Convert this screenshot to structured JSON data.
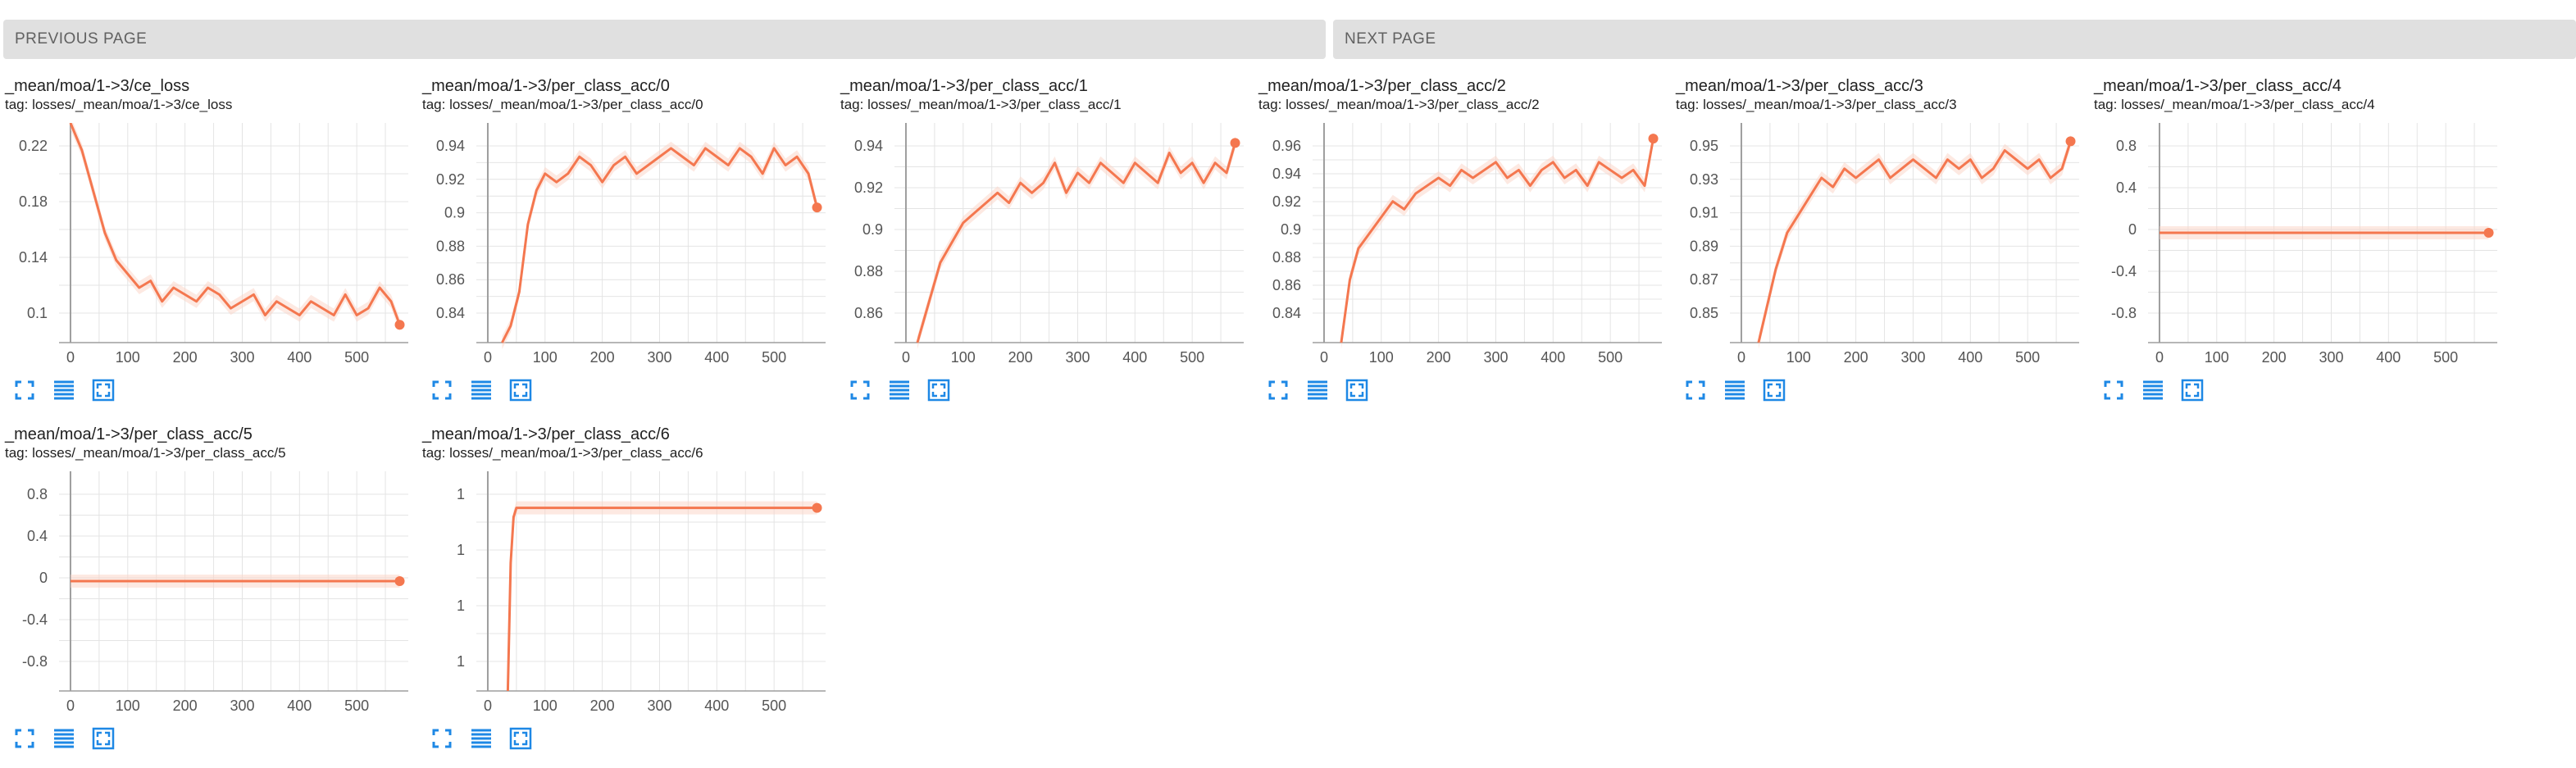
{
  "pager": {
    "previous_label": "PREVIOUS PAGE",
    "next_label": "NEXT PAGE"
  },
  "card_buttons": [
    "expand-icon",
    "data-table-icon",
    "fit-domain-icon"
  ],
  "colors": {
    "line": "#f4774f",
    "smooth_band": "#fbd3c6",
    "axis": "#9e9e9e",
    "grid": "#e4e4e4",
    "button": "#1e88e5"
  },
  "cards": [
    {
      "title": "_mean/moa/1->3/ce_loss",
      "tag": "tag: losses/_mean/moa/1->3/ce_loss",
      "x_ticks": [
        "0",
        "100",
        "200",
        "300",
        "400",
        "500"
      ],
      "y_ticks": [
        "0.22",
        "0.18",
        "0.14",
        "0.1"
      ]
    },
    {
      "title": "_mean/moa/1->3/per_class_acc/0",
      "tag": "tag: losses/_mean/moa/1->3/per_class_acc/0",
      "x_ticks": [
        "0",
        "100",
        "200",
        "300",
        "400",
        "500"
      ],
      "y_ticks": [
        "0.94",
        "0.92",
        "0.9",
        "0.88",
        "0.86",
        "0.84"
      ]
    },
    {
      "title": "_mean/moa/1->3/per_class_acc/1",
      "tag": "tag: losses/_mean/moa/1->3/per_class_acc/1",
      "x_ticks": [
        "0",
        "100",
        "200",
        "300",
        "400",
        "500"
      ],
      "y_ticks": [
        "0.94",
        "0.92",
        "0.9",
        "0.88",
        "0.86"
      ]
    },
    {
      "title": "_mean/moa/1->3/per_class_acc/2",
      "tag": "tag: losses/_mean/moa/1->3/per_class_acc/2",
      "x_ticks": [
        "0",
        "100",
        "200",
        "300",
        "400",
        "500"
      ],
      "y_ticks": [
        "0.96",
        "0.94",
        "0.92",
        "0.9",
        "0.88",
        "0.86",
        "0.84"
      ]
    },
    {
      "title": "_mean/moa/1->3/per_class_acc/3",
      "tag": "tag: losses/_mean/moa/1->3/per_class_acc/3",
      "x_ticks": [
        "0",
        "100",
        "200",
        "300",
        "400",
        "500"
      ],
      "y_ticks": [
        "0.95",
        "0.93",
        "0.91",
        "0.89",
        "0.87",
        "0.85"
      ]
    },
    {
      "title": "_mean/moa/1->3/per_class_acc/4",
      "tag": "tag: losses/_mean/moa/1->3/per_class_acc/4",
      "x_ticks": [
        "0",
        "100",
        "200",
        "300",
        "400",
        "500"
      ],
      "y_ticks": [
        "0.8",
        "0.4",
        "0",
        "-0.4",
        "-0.8"
      ]
    },
    {
      "title": "_mean/moa/1->3/per_class_acc/5",
      "tag": "tag: losses/_mean/moa/1->3/per_class_acc/5",
      "x_ticks": [
        "0",
        "100",
        "200",
        "300",
        "400",
        "500"
      ],
      "y_ticks": [
        "0.8",
        "0.4",
        "0",
        "-0.4",
        "-0.8"
      ]
    },
    {
      "title": "_mean/moa/1->3/per_class_acc/6",
      "tag": "tag: losses/_mean/moa/1->3/per_class_acc/6",
      "x_ticks": [
        "0",
        "100",
        "200",
        "300",
        "400",
        "500"
      ],
      "y_ticks": [
        "1",
        "1",
        "1",
        "1"
      ]
    }
  ],
  "chart_data": [
    {
      "type": "line",
      "title": "_mean/moa/1->3/ce_loss",
      "xlim": [
        -20,
        590
      ],
      "ylim": [
        0.08,
        0.24
      ],
      "x": [
        0,
        20,
        40,
        60,
        80,
        100,
        120,
        140,
        160,
        180,
        200,
        220,
        240,
        260,
        280,
        300,
        320,
        340,
        360,
        380,
        400,
        420,
        440,
        460,
        480,
        500,
        520,
        540,
        560,
        575
      ],
      "y": [
        0.25,
        0.22,
        0.19,
        0.16,
        0.14,
        0.13,
        0.12,
        0.125,
        0.11,
        0.12,
        0.115,
        0.11,
        0.12,
        0.115,
        0.105,
        0.11,
        0.115,
        0.1,
        0.11,
        0.105,
        0.1,
        0.11,
        0.105,
        0.1,
        0.115,
        0.1,
        0.105,
        0.12,
        0.11,
        0.093
      ]
    },
    {
      "type": "line",
      "title": "_mean/moa/1->3/per_class_acc/0",
      "xlim": [
        -20,
        590
      ],
      "ylim": [
        0.83,
        0.96
      ],
      "x": [
        25,
        40,
        55,
        70,
        85,
        100,
        120,
        140,
        160,
        180,
        200,
        220,
        240,
        260,
        280,
        300,
        320,
        340,
        360,
        380,
        400,
        420,
        440,
        460,
        480,
        500,
        520,
        540,
        560,
        575
      ],
      "y": [
        0.82,
        0.84,
        0.86,
        0.9,
        0.92,
        0.93,
        0.925,
        0.93,
        0.94,
        0.935,
        0.925,
        0.935,
        0.94,
        0.93,
        0.935,
        0.94,
        0.945,
        0.94,
        0.935,
        0.945,
        0.94,
        0.935,
        0.945,
        0.94,
        0.93,
        0.945,
        0.935,
        0.94,
        0.93,
        0.91
      ]
    },
    {
      "type": "line",
      "title": "_mean/moa/1->3/per_class_acc/1",
      "xlim": [
        -20,
        590
      ],
      "ylim": [
        0.85,
        0.96
      ],
      "x": [
        20,
        40,
        60,
        80,
        100,
        120,
        140,
        160,
        180,
        200,
        220,
        240,
        260,
        280,
        300,
        320,
        340,
        360,
        380,
        400,
        420,
        440,
        460,
        480,
        500,
        520,
        540,
        560,
        575
      ],
      "y": [
        0.84,
        0.87,
        0.89,
        0.9,
        0.91,
        0.915,
        0.92,
        0.925,
        0.92,
        0.93,
        0.925,
        0.93,
        0.94,
        0.925,
        0.935,
        0.93,
        0.94,
        0.935,
        0.93,
        0.94,
        0.935,
        0.93,
        0.945,
        0.935,
        0.94,
        0.93,
        0.94,
        0.935,
        0.95
      ]
    },
    {
      "type": "line",
      "title": "_mean/moa/1->3/per_class_acc/2",
      "xlim": [
        -20,
        590
      ],
      "ylim": [
        0.83,
        0.97
      ],
      "x": [
        30,
        45,
        60,
        80,
        100,
        120,
        140,
        160,
        180,
        200,
        220,
        240,
        260,
        280,
        300,
        320,
        340,
        360,
        380,
        400,
        420,
        440,
        460,
        480,
        500,
        520,
        540,
        560,
        575
      ],
      "y": [
        0.83,
        0.87,
        0.89,
        0.9,
        0.91,
        0.92,
        0.915,
        0.925,
        0.93,
        0.935,
        0.93,
        0.94,
        0.935,
        0.94,
        0.945,
        0.935,
        0.94,
        0.93,
        0.94,
        0.945,
        0.935,
        0.94,
        0.93,
        0.945,
        0.94,
        0.935,
        0.94,
        0.93,
        0.96
      ]
    },
    {
      "type": "line",
      "title": "_mean/moa/1->3/per_class_acc/3",
      "xlim": [
        -20,
        590
      ],
      "ylim": [
        0.84,
        0.96
      ],
      "x": [
        30,
        45,
        60,
        80,
        100,
        120,
        140,
        160,
        180,
        200,
        220,
        240,
        260,
        280,
        300,
        320,
        340,
        360,
        380,
        400,
        420,
        440,
        460,
        480,
        500,
        520,
        540,
        560,
        575
      ],
      "y": [
        0.84,
        0.86,
        0.88,
        0.9,
        0.91,
        0.92,
        0.93,
        0.925,
        0.935,
        0.93,
        0.935,
        0.94,
        0.93,
        0.935,
        0.94,
        0.935,
        0.93,
        0.94,
        0.935,
        0.94,
        0.93,
        0.935,
        0.945,
        0.94,
        0.935,
        0.94,
        0.93,
        0.935,
        0.95
      ]
    },
    {
      "type": "line",
      "title": "_mean/moa/1->3/per_class_acc/4",
      "xlim": [
        -20,
        590
      ],
      "ylim": [
        -1,
        1
      ],
      "x": [
        0,
        575
      ],
      "y": [
        0,
        0
      ]
    },
    {
      "type": "line",
      "title": "_mean/moa/1->3/per_class_acc/5",
      "xlim": [
        -20,
        590
      ],
      "ylim": [
        -1,
        1
      ],
      "x": [
        0,
        575
      ],
      "y": [
        0,
        0
      ]
    },
    {
      "type": "line",
      "title": "_mean/moa/1->3/per_class_acc/6",
      "xlim": [
        -20,
        590
      ],
      "ylim": [
        0.9,
        1.02
      ],
      "x": [
        35,
        40,
        45,
        50,
        575
      ],
      "y": [
        0.9,
        0.97,
        0.995,
        1,
        1
      ]
    }
  ]
}
